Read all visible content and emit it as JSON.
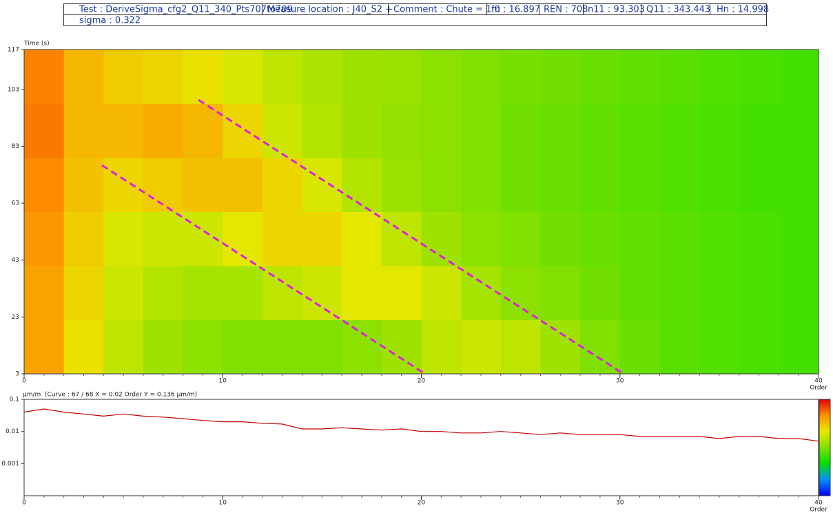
{
  "header": {
    "cells": [
      "Test : DeriveSigma_cfg2_Q11_340_Pts707to709",
      "Measure location : J40_S2   +",
      "Comment : Chute = 1m",
      "f0 : 16.897",
      "REN : 708",
      "n11 : 93.303",
      "Q11 : 343.443",
      "Hn : 14.998"
    ],
    "row2": "sigma : 0.322"
  },
  "chart_data": [
    {
      "type": "heatmap",
      "y_label": "Time (s)",
      "x_label": "Order",
      "xbins": [
        0,
        2,
        4,
        6,
        8,
        10,
        12,
        14,
        16,
        18,
        20,
        22,
        24,
        26,
        28,
        30,
        32,
        34,
        36,
        38,
        40
      ],
      "ybins": [
        3,
        22,
        41,
        60,
        79,
        98,
        117
      ],
      "z": [
        [
          0.8,
          0.68,
          0.6,
          0.55,
          0.52,
          0.5,
          0.5,
          0.5,
          0.52,
          0.55,
          0.6,
          0.62,
          0.6,
          0.55,
          0.5,
          0.47,
          0.45,
          0.44,
          0.43,
          0.42
        ],
        [
          0.8,
          0.7,
          0.62,
          0.58,
          0.56,
          0.56,
          0.6,
          0.62,
          0.66,
          0.66,
          0.62,
          0.56,
          0.52,
          0.5,
          0.48,
          0.46,
          0.45,
          0.44,
          0.43,
          0.42
        ],
        [
          0.82,
          0.72,
          0.64,
          0.62,
          0.62,
          0.66,
          0.7,
          0.7,
          0.66,
          0.6,
          0.55,
          0.52,
          0.5,
          0.48,
          0.47,
          0.46,
          0.45,
          0.44,
          0.43,
          0.42
        ],
        [
          0.84,
          0.74,
          0.7,
          0.72,
          0.74,
          0.74,
          0.7,
          0.64,
          0.58,
          0.54,
          0.52,
          0.5,
          0.48,
          0.47,
          0.46,
          0.45,
          0.44,
          0.43,
          0.42,
          0.42
        ],
        [
          0.86,
          0.76,
          0.76,
          0.78,
          0.76,
          0.7,
          0.62,
          0.58,
          0.55,
          0.53,
          0.52,
          0.5,
          0.48,
          0.47,
          0.46,
          0.45,
          0.44,
          0.43,
          0.42,
          0.42
        ],
        [
          0.85,
          0.76,
          0.72,
          0.7,
          0.68,
          0.64,
          0.6,
          0.57,
          0.55,
          0.54,
          0.52,
          0.5,
          0.49,
          0.48,
          0.47,
          0.46,
          0.45,
          0.44,
          0.43,
          0.42
        ]
      ],
      "zlim": [
        0,
        1
      ],
      "colors": [
        "#0000ff",
        "#0090ff",
        "#00e000",
        "#80e000",
        "#e8e800",
        "#ff9000",
        "#e00000"
      ],
      "xlim": [
        0,
        40
      ],
      "xticks": [
        0,
        10,
        20,
        30,
        40
      ],
      "ylim": [
        3,
        117
      ],
      "yticks": [
        3,
        23,
        43,
        63,
        83,
        103,
        117
      ]
    },
    {
      "type": "line",
      "y_label": "µm/m",
      "annotation": "(Curve : 67 / 68   X = 0.02 Order   Y = 0.136 µm/m)",
      "x_label": "Order",
      "log_y": true,
      "color": "#c00000",
      "x": [
        0,
        1,
        2,
        3,
        4,
        5,
        6,
        7,
        8,
        9,
        10,
        11,
        12,
        13,
        14,
        15,
        16,
        17,
        18,
        19,
        20,
        21,
        22,
        23,
        24,
        25,
        26,
        27,
        28,
        29,
        30,
        31,
        32,
        33,
        34,
        35,
        36,
        37,
        38,
        39,
        40
      ],
      "values": [
        0.04,
        0.05,
        0.04,
        0.035,
        0.03,
        0.035,
        0.03,
        0.028,
        0.025,
        0.022,
        0.02,
        0.02,
        0.018,
        0.017,
        0.012,
        0.012,
        0.013,
        0.012,
        0.011,
        0.012,
        0.01,
        0.01,
        0.009,
        0.009,
        0.01,
        0.009,
        0.008,
        0.009,
        0.008,
        0.008,
        0.008,
        0.007,
        0.007,
        0.007,
        0.007,
        0.006,
        0.007,
        0.007,
        0.006,
        0.006,
        0.005
      ],
      "xlim": [
        0,
        40
      ],
      "xticks": [
        0,
        10,
        20,
        30,
        40
      ],
      "ylim": [
        0.0001,
        0.1
      ],
      "yticks": [
        0.001,
        0.01,
        0.1
      ]
    }
  ]
}
